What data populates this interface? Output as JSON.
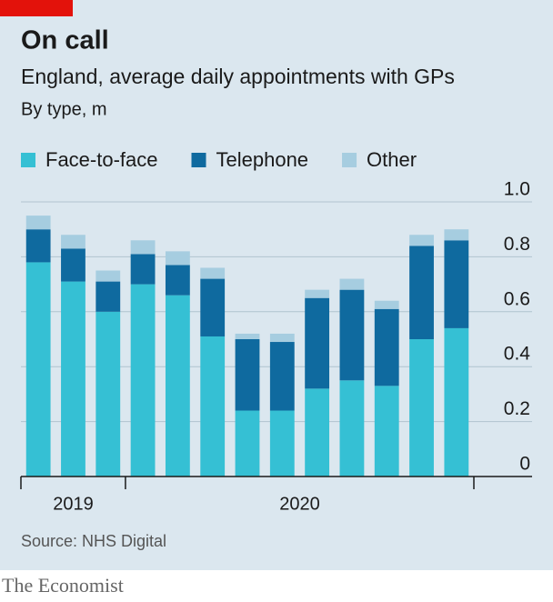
{
  "chart_data": {
    "type": "bar",
    "stacked": true,
    "title": "On call",
    "subtitle": "England, average daily appointments with GPs",
    "unit_label": "By type, m",
    "source": "Source: NHS Digital",
    "brand": "The Economist",
    "categories": [
      null,
      null,
      null,
      null,
      null,
      null,
      null,
      null,
      null,
      null,
      null,
      null,
      null
    ],
    "x_groups": [
      {
        "label": "2019",
        "count": 3
      },
      {
        "label": "2020",
        "count": 10
      }
    ],
    "series": [
      {
        "name": "Face-to-face",
        "color": "#35c0d4",
        "values": [
          0.78,
          0.71,
          0.6,
          0.7,
          0.66,
          0.51,
          0.24,
          0.24,
          0.32,
          0.35,
          0.33,
          0.5,
          0.54
        ]
      },
      {
        "name": "Telephone",
        "color": "#0f6a9f",
        "values": [
          0.12,
          0.12,
          0.11,
          0.11,
          0.11,
          0.21,
          0.26,
          0.25,
          0.33,
          0.33,
          0.28,
          0.34,
          0.32
        ]
      },
      {
        "name": "Other",
        "color": "#a6cde0",
        "values": [
          0.05,
          0.05,
          0.04,
          0.05,
          0.05,
          0.04,
          0.02,
          0.03,
          0.03,
          0.04,
          0.03,
          0.04,
          0.04
        ]
      }
    ],
    "ylim": [
      0,
      1
    ],
    "yticks": [
      0,
      0.2,
      0.4,
      0.6,
      0.8,
      {
        "value": 1,
        "label": "1.0"
      }
    ],
    "grid": true,
    "legend": "top-left"
  }
}
